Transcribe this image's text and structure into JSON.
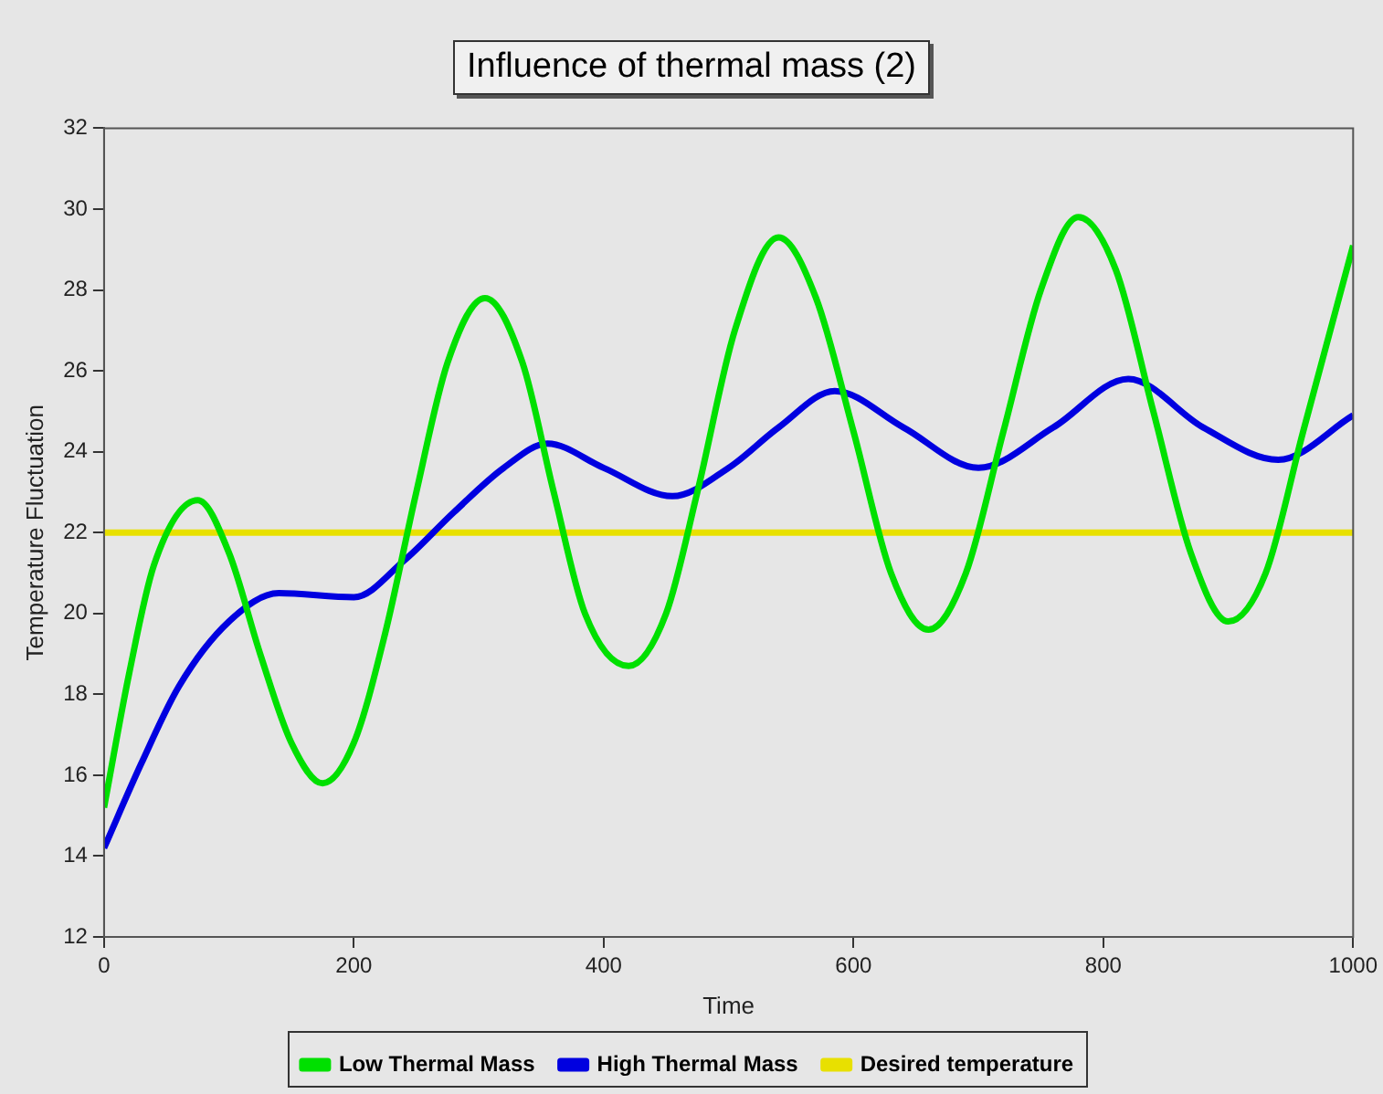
{
  "chart_data": {
    "type": "line",
    "title": "Influence of thermal mass (2)",
    "xlabel": "Time",
    "ylabel": "Temperature Fluctuation",
    "xlim": [
      0,
      1000
    ],
    "xticks": [
      0,
      200,
      400,
      600,
      800,
      1000
    ],
    "ylim": [
      12,
      32
    ],
    "yticks": [
      12,
      14,
      16,
      18,
      20,
      22,
      24,
      26,
      28,
      30,
      32
    ],
    "grid": false,
    "legend": "bottom",
    "marker": "none",
    "line_style": "solid",
    "series": [
      {
        "name": "Low Thermal Mass",
        "color": "#00e000",
        "x": [
          0,
          20,
          40,
          75,
          100,
          125,
          150,
          175,
          200,
          225,
          250,
          275,
          305,
          335,
          360,
          385,
          420,
          450,
          475,
          505,
          540,
          570,
          600,
          630,
          660,
          690,
          720,
          750,
          780,
          810,
          840,
          870,
          900,
          930,
          960,
          1000
        ],
        "values": [
          15.2,
          18.5,
          21.2,
          22.8,
          21.5,
          19,
          16.8,
          15.8,
          16.8,
          19.5,
          23,
          26.2,
          27.8,
          26.2,
          23,
          20,
          18.7,
          20,
          23,
          27,
          29.3,
          27.8,
          24.5,
          21,
          19.6,
          21,
          24.5,
          28,
          29.8,
          28.5,
          25,
          21.5,
          19.8,
          21,
          24.5,
          29.1
        ]
      },
      {
        "name": "High Thermal Mass",
        "color": "#0000e0",
        "x": [
          0,
          30,
          60,
          100,
          140,
          200,
          240,
          280,
          320,
          355,
          400,
          455,
          500,
          540,
          585,
          640,
          700,
          760,
          820,
          880,
          940,
          1000
        ],
        "values": [
          14.2,
          16.3,
          18.2,
          19.8,
          20.5,
          20.4,
          21.3,
          22.5,
          23.6,
          24.2,
          23.6,
          22.9,
          23.6,
          24.6,
          25.5,
          24.6,
          23.6,
          24.6,
          25.8,
          24.6,
          23.8,
          24.9
        ]
      },
      {
        "name": "Desired temperature",
        "color": "#e8e000",
        "x": [
          0,
          1000
        ],
        "values": [
          22,
          22
        ]
      }
    ]
  }
}
